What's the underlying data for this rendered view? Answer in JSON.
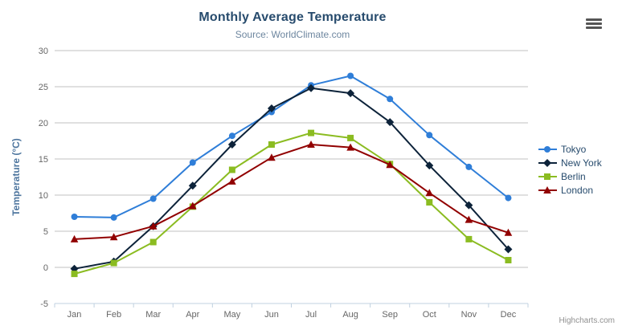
{
  "chart": {
    "title": "Monthly Average Temperature",
    "subtitle": "Source: WorldClimate.com",
    "credits": "Highcharts.com"
  },
  "chart_data": {
    "type": "line",
    "title": "Monthly Average Temperature",
    "subtitle": "Source: WorldClimate.com",
    "categories": [
      "Jan",
      "Feb",
      "Mar",
      "Apr",
      "May",
      "Jun",
      "Jul",
      "Aug",
      "Sep",
      "Oct",
      "Nov",
      "Dec"
    ],
    "series": [
      {
        "name": "Tokyo",
        "color": "#2f7ed8",
        "marker": "circle",
        "values": [
          7.0,
          6.9,
          9.5,
          14.5,
          18.2,
          21.5,
          25.2,
          26.5,
          23.3,
          18.3,
          13.9,
          9.6
        ]
      },
      {
        "name": "New York",
        "color": "#0d233a",
        "marker": "diamond",
        "values": [
          -0.2,
          0.8,
          5.7,
          11.3,
          17.0,
          22.0,
          24.8,
          24.1,
          20.1,
          14.1,
          8.6,
          2.5
        ]
      },
      {
        "name": "Berlin",
        "color": "#8bbc21",
        "marker": "square",
        "values": [
          -0.9,
          0.6,
          3.5,
          8.4,
          13.5,
          17.0,
          18.6,
          17.9,
          14.3,
          9.0,
          3.9,
          1.0
        ]
      },
      {
        "name": "London",
        "color": "#910000",
        "marker": "triangle",
        "values": [
          3.9,
          4.2,
          5.7,
          8.5,
          11.9,
          15.2,
          17.0,
          16.6,
          14.2,
          10.3,
          6.6,
          4.8
        ]
      }
    ],
    "xlabel": "",
    "ylabel": "Temperature (°C)",
    "ylim": [
      -5,
      30
    ],
    "ytick_step": 5,
    "grid": true,
    "legend_position": "right"
  },
  "colors": {
    "grid": "#C0C0C0",
    "axis_line": "#C0D0E0",
    "tick": "#C0D0E0",
    "title": "#274b6d",
    "subtitle": "#6D869F",
    "axis_title": "#4d759e",
    "axis_labels": "#666666",
    "legend_text": "#274b6d",
    "credits": "#909090"
  }
}
